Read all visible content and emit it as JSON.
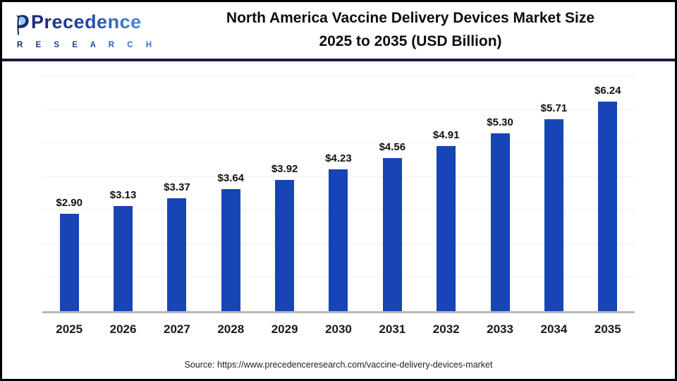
{
  "header": {
    "logo": {
      "name": "Precedence Research",
      "word": "Precedence",
      "sub": "R E S E A R C H",
      "colors": {
        "dark_navy": "#1b2a72",
        "light_blue": "#4a8ad8",
        "leaf_inner": "#8fd0f0"
      }
    },
    "title_line1": "North America Vaccine Delivery Devices Market Size",
    "title_line2": "2025 to 2035 (USD Billion)"
  },
  "chart_data": {
    "type": "bar",
    "title": "North America Vaccine Delivery Devices Market Size 2025 to 2035 (USD Billion)",
    "unit": "USD Billion",
    "categories": [
      "2025",
      "2026",
      "2027",
      "2028",
      "2029",
      "2030",
      "2031",
      "2032",
      "2033",
      "2034",
      "2035"
    ],
    "values": [
      2.9,
      3.13,
      3.37,
      3.64,
      3.92,
      4.23,
      4.56,
      4.91,
      5.3,
      5.71,
      6.24
    ],
    "labels": [
      "$2.90",
      "$3.13",
      "$3.37",
      "$3.64",
      "$3.92",
      "$4.23",
      "$4.56",
      "$4.91",
      "$5.30",
      "$5.71",
      "$6.24"
    ],
    "xlabel": "",
    "ylabel": "",
    "ylim": [
      0,
      7
    ],
    "gridlines": [
      1,
      2,
      3,
      4,
      5,
      6,
      7
    ],
    "grid": "horizontal-only",
    "legend": "none",
    "bar_color": "#1745b5",
    "axis_line_color": "#b8b8b8",
    "gridline_color": "#efefef"
  },
  "footer": {
    "source_text": "Source: https://www.precedenceresearch.com/vaccine-delivery-devices-market"
  }
}
